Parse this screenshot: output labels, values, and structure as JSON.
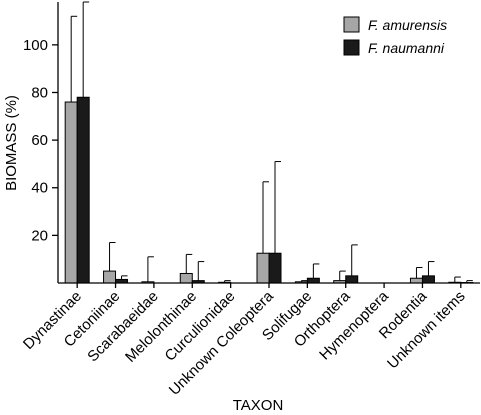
{
  "chart_data": {
    "type": "bar",
    "title": "",
    "xlabel": "TAXON",
    "ylabel": "BIOMASS (%)",
    "ylim": [
      0,
      118
    ],
    "yticks": [
      20,
      40,
      60,
      80,
      100
    ],
    "ytick_labels": [
      "20",
      "40",
      "60",
      "80",
      "100"
    ],
    "legend_position": "top-right",
    "categories": [
      "Dynastinae",
      "Cetoniinae",
      "Scarabaeidae",
      "Melolonthinae",
      "Curculionidae",
      "Unknown Coleoptera",
      "Solifugae",
      "Orthoptera",
      "Hymenoptera",
      "Rodentia",
      "Unknown items"
    ],
    "series": [
      {
        "name": "F. amurensis",
        "color": "#a6a6a6",
        "values": [
          76,
          5,
          0.5,
          4,
          0.3,
          12.5,
          0.5,
          1,
          0,
          2,
          0.3
        ],
        "error_upper": [
          112,
          17,
          11,
          12,
          1,
          42.5,
          1,
          5,
          0,
          6.5,
          2.5
        ]
      },
      {
        "name": "F. naumanni",
        "color": "#1a1a1a",
        "values": [
          78,
          1.5,
          0,
          1,
          0,
          12.5,
          2,
          3,
          0,
          3,
          0.2
        ],
        "error_upper": [
          118,
          3,
          0,
          9,
          0,
          51,
          8,
          16,
          0,
          9,
          1
        ]
      }
    ]
  }
}
